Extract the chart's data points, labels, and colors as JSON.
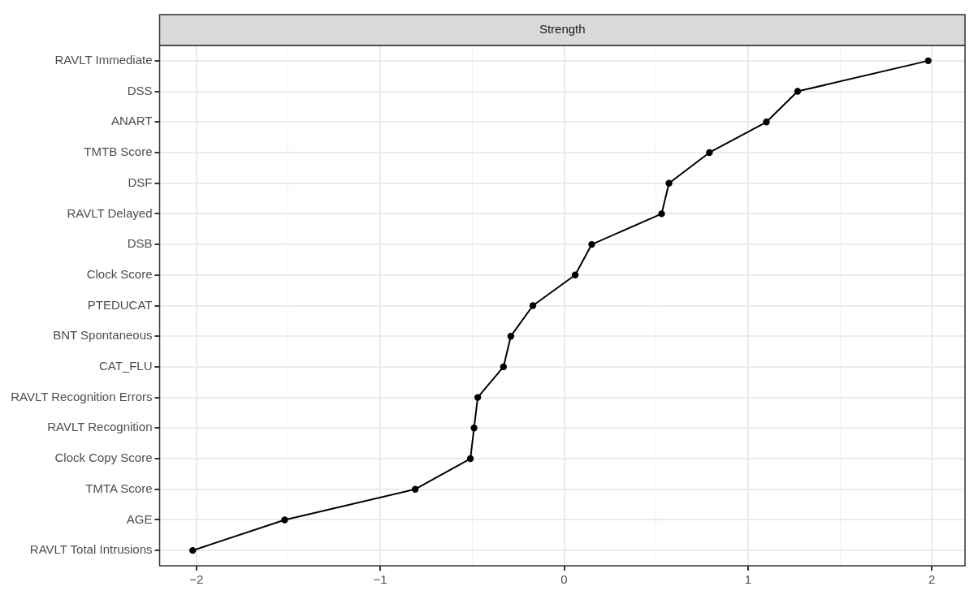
{
  "chart_data": {
    "type": "line",
    "title": "Strength",
    "orientation": "horizontal",
    "categories": [
      "RAVLT Immediate",
      "DSS",
      "ANART",
      "TMTB Score",
      "DSF",
      "RAVLT Delayed",
      "DSB",
      "Clock Score",
      "PTEDUCAT",
      "BNT Spontaneous",
      "CAT_FLU",
      "RAVLT Recognition Errors",
      "RAVLT Recognition",
      "Clock Copy Score",
      "TMTA Score",
      "AGE",
      "RAVLT Total Intrusions"
    ],
    "series": [
      {
        "color": "#000000",
        "values": [
          1.98,
          1.27,
          1.1,
          0.79,
          0.57,
          0.53,
          0.15,
          0.06,
          -0.17,
          -0.29,
          -0.33,
          -0.47,
          -0.49,
          -0.51,
          -0.81,
          -1.52,
          -2.02
        ]
      }
    ],
    "xlim": [
      -2.2,
      2.18
    ],
    "xticks": [
      -2,
      {
        "value": -1.5,
        "label": null
      },
      -1,
      {
        "value": -0.5,
        "label": null
      },
      0,
      {
        "value": 0.5,
        "label": null
      },
      1,
      {
        "value": 1.5,
        "label": null
      },
      2
    ],
    "grid": true,
    "marker": "circle",
    "line_style": "solid",
    "legend": false
  }
}
